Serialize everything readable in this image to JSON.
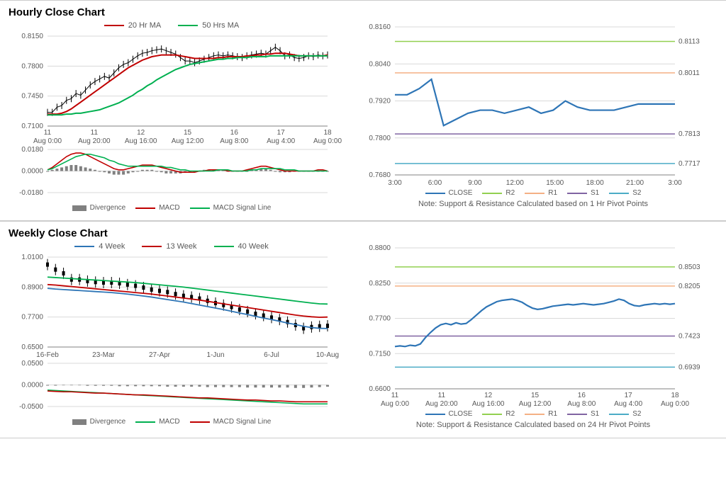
{
  "hourly": {
    "title": "Hourly Close Chart",
    "top_legend": [
      {
        "label": "20 Hr MA",
        "color": "#c00000"
      },
      {
        "label": "50 Hrs MA",
        "color": "#00b050"
      }
    ],
    "main_chart": {
      "type": "line",
      "ylim": [
        0.71,
        0.815
      ],
      "yticks": [
        0.71,
        0.745,
        0.78,
        0.815
      ],
      "xlabels": [
        "11 Aug 0:00",
        "11 Aug 20:00",
        "12 Aug 16:00",
        "15 Aug 12:00",
        "16 Aug 8:00",
        "17 Aug 4:00",
        "18 Aug 0:00"
      ],
      "price_color": "#000000",
      "price": [
        0.726,
        0.726,
        0.732,
        0.734,
        0.74,
        0.742,
        0.748,
        0.746,
        0.752,
        0.758,
        0.762,
        0.765,
        0.768,
        0.766,
        0.772,
        0.778,
        0.782,
        0.784,
        0.788,
        0.792,
        0.795,
        0.796,
        0.798,
        0.799,
        0.8,
        0.798,
        0.796,
        0.794,
        0.79,
        0.786,
        0.786,
        0.784,
        0.786,
        0.788,
        0.79,
        0.792,
        0.793,
        0.792,
        0.793,
        0.792,
        0.791,
        0.79,
        0.792,
        0.793,
        0.794,
        0.795,
        0.794,
        0.798,
        0.802,
        0.798,
        0.792,
        0.793,
        0.79,
        0.789,
        0.79,
        0.792,
        0.791,
        0.793,
        0.792,
        0.793
      ],
      "ma20_color": "#c00000",
      "ma20": [
        0.724,
        0.724,
        0.724,
        0.725,
        0.727,
        0.73,
        0.734,
        0.738,
        0.742,
        0.746,
        0.75,
        0.754,
        0.758,
        0.762,
        0.766,
        0.77,
        0.774,
        0.778,
        0.781,
        0.784,
        0.787,
        0.789,
        0.791,
        0.792,
        0.793,
        0.793,
        0.793,
        0.793,
        0.792,
        0.791,
        0.79,
        0.789,
        0.789,
        0.789,
        0.789,
        0.789,
        0.79,
        0.79,
        0.791,
        0.791,
        0.791,
        0.791,
        0.792,
        0.792,
        0.793,
        0.793,
        0.794,
        0.794,
        0.795,
        0.795,
        0.795,
        0.794,
        0.793,
        0.792,
        0.792,
        0.792,
        0.792,
        0.792,
        0.792,
        0.793
      ],
      "ma50_color": "#00b050",
      "ma50": [
        0.723,
        0.723,
        0.723,
        0.723,
        0.724,
        0.724,
        0.725,
        0.725,
        0.726,
        0.727,
        0.728,
        0.729,
        0.731,
        0.733,
        0.735,
        0.737,
        0.74,
        0.743,
        0.746,
        0.75,
        0.753,
        0.757,
        0.76,
        0.764,
        0.767,
        0.77,
        0.773,
        0.776,
        0.778,
        0.78,
        0.782,
        0.783,
        0.784,
        0.785,
        0.786,
        0.787,
        0.788,
        0.788,
        0.789,
        0.789,
        0.79,
        0.79,
        0.79,
        0.791,
        0.791,
        0.791,
        0.791,
        0.792,
        0.792,
        0.792,
        0.792,
        0.792,
        0.792,
        0.792,
        0.792,
        0.792,
        0.792,
        0.792,
        0.792,
        0.792
      ],
      "grid_color": "#d9d9d9",
      "background_color": "#ffffff"
    },
    "macd_chart": {
      "type": "line",
      "ylim": [
        -0.018,
        0.018
      ],
      "yticks": [
        -0.018,
        0.0,
        0.018
      ],
      "div_color": "#808080",
      "divergence": [
        0,
        0.001,
        0.002,
        0.003,
        0.004,
        0.005,
        0.005,
        0.004,
        0.003,
        0.002,
        0.001,
        0,
        -0.001,
        -0.002,
        -0.003,
        -0.003,
        -0.003,
        -0.002,
        -0.001,
        0,
        0.001,
        0.001,
        0.001,
        0,
        -0.001,
        -0.002,
        -0.002,
        -0.002,
        -0.002,
        -0.001,
        -0.001,
        0,
        0,
        0.001,
        0.001,
        0.001,
        0.001,
        0.001,
        0,
        0,
        0,
        0,
        0,
        0.001,
        0.001,
        0.002,
        0.002,
        0.001,
        0,
        -0.001,
        -0.001,
        -0.001,
        0,
        0,
        0,
        0,
        0,
        0,
        0,
        0
      ],
      "macd_color": "#c00000",
      "macd": [
        0.001,
        0.003,
        0.006,
        0.009,
        0.012,
        0.014,
        0.015,
        0.015,
        0.014,
        0.012,
        0.01,
        0.008,
        0.006,
        0.004,
        0.002,
        0.001,
        0.001,
        0.002,
        0.003,
        0.004,
        0.005,
        0.005,
        0.005,
        0.004,
        0.003,
        0.002,
        0.001,
        0,
        -0.001,
        -0.001,
        -0.001,
        -0.001,
        0,
        0,
        0.001,
        0.001,
        0.001,
        0.001,
        0,
        0,
        0,
        0,
        0.001,
        0.002,
        0.003,
        0.004,
        0.004,
        0.003,
        0.002,
        0.001,
        0,
        0,
        0,
        0,
        0,
        0,
        0,
        0.001,
        0.001,
        0
      ],
      "signal_color": "#00b050",
      "signal": [
        0.001,
        0.002,
        0.004,
        0.006,
        0.008,
        0.01,
        0.012,
        0.013,
        0.014,
        0.014,
        0.013,
        0.012,
        0.011,
        0.009,
        0.008,
        0.006,
        0.005,
        0.004,
        0.004,
        0.004,
        0.004,
        0.004,
        0.004,
        0.004,
        0.004,
        0.003,
        0.003,
        0.002,
        0.001,
        0.001,
        0,
        0,
        0,
        0,
        0,
        0,
        0.001,
        0.001,
        0.001,
        0,
        0,
        0,
        0,
        0.001,
        0.001,
        0.002,
        0.002,
        0.002,
        0.002,
        0.002,
        0.001,
        0.001,
        0.001,
        0,
        0,
        0,
        0,
        0,
        0,
        0
      ],
      "legend": [
        {
          "label": "Divergence",
          "color": "#808080",
          "type": "bar"
        },
        {
          "label": "MACD",
          "color": "#c00000",
          "type": "line"
        },
        {
          "label": "MACD Signal Line",
          "color": "#00b050",
          "type": "line"
        }
      ]
    },
    "sr_chart": {
      "type": "line",
      "ylim": [
        0.768,
        0.816
      ],
      "yticks": [
        0.768,
        0.78,
        0.792,
        0.804,
        0.816
      ],
      "xlabels": [
        "3:00",
        "6:00",
        "9:00",
        "12:00",
        "15:00",
        "18:00",
        "21:00",
        "3:00"
      ],
      "close_color": "#2e75b6",
      "close": [
        0.794,
        0.794,
        0.796,
        0.799,
        0.784,
        0.786,
        0.788,
        0.789,
        0.789,
        0.788,
        0.789,
        0.79,
        0.788,
        0.789,
        0.792,
        0.79,
        0.789,
        0.789,
        0.789,
        0.79,
        0.791,
        0.791,
        0.791,
        0.791
      ],
      "levels": [
        {
          "name": "R2",
          "value": 0.8113,
          "label": "0.8113",
          "color": "#92d050"
        },
        {
          "name": "R1",
          "value": 0.8011,
          "label": "0.8011",
          "color": "#f4b084"
        },
        {
          "name": "S1",
          "value": 0.7813,
          "label": "0.7813",
          "color": "#8064a2"
        },
        {
          "name": "S2",
          "value": 0.7717,
          "label": "0.7717",
          "color": "#4bacc6"
        }
      ],
      "legend": [
        {
          "label": "CLOSE",
          "color": "#2e75b6"
        },
        {
          "label": "R2",
          "color": "#92d050"
        },
        {
          "label": "R1",
          "color": "#f4b084"
        },
        {
          "label": "S1",
          "color": "#8064a2"
        },
        {
          "label": "S2",
          "color": "#4bacc6"
        }
      ],
      "note": "Note: Support & Resistance Calculated based on 1 Hr Pivot Points"
    }
  },
  "weekly": {
    "title": "Weekly Close Chart",
    "top_legend": [
      {
        "label": "4 Week",
        "color": "#2e75b6"
      },
      {
        "label": "13 Week",
        "color": "#c00000"
      },
      {
        "label": "40 Week",
        "color": "#00b050"
      }
    ],
    "main_chart": {
      "type": "line",
      "ylim": [
        0.65,
        1.01
      ],
      "yticks": [
        0.65,
        0.77,
        0.89,
        1.01
      ],
      "xlabels": [
        "16-Feb",
        "23-Mar",
        "27-Apr",
        "1-Jun",
        "6-Jul",
        "10-Aug"
      ],
      "candle_color": "#000000",
      "candles": [
        0.98,
        0.96,
        0.945,
        0.92,
        0.92,
        0.914,
        0.91,
        0.908,
        0.908,
        0.905,
        0.9,
        0.895,
        0.888,
        0.88,
        0.875,
        0.87,
        0.862,
        0.855,
        0.85,
        0.844,
        0.835,
        0.826,
        0.818,
        0.81,
        0.8,
        0.792,
        0.783,
        0.776,
        0.768,
        0.76,
        0.75,
        0.738,
        0.725,
        0.73,
        0.733,
        0.735
      ],
      "w4_color": "#2e75b6",
      "w4": [
        0.885,
        0.882,
        0.88,
        0.878,
        0.876,
        0.874,
        0.872,
        0.87,
        0.868,
        0.865,
        0.862,
        0.858,
        0.854,
        0.85,
        0.845,
        0.84,
        0.835,
        0.83,
        0.824,
        0.818,
        0.812,
        0.806,
        0.8,
        0.793,
        0.786,
        0.78,
        0.773,
        0.766,
        0.76,
        0.753,
        0.746,
        0.74,
        0.733,
        0.728,
        0.725,
        0.724
      ],
      "w13_color": "#c00000",
      "w13": [
        0.9,
        0.898,
        0.895,
        0.892,
        0.889,
        0.886,
        0.883,
        0.88,
        0.877,
        0.874,
        0.871,
        0.868,
        0.865,
        0.862,
        0.858,
        0.854,
        0.85,
        0.846,
        0.842,
        0.838,
        0.833,
        0.828,
        0.823,
        0.818,
        0.813,
        0.808,
        0.803,
        0.798,
        0.793,
        0.788,
        0.783,
        0.778,
        0.774,
        0.771,
        0.769,
        0.77
      ],
      "w40_color": "#00b050",
      "w40": [
        0.93,
        0.928,
        0.926,
        0.924,
        0.922,
        0.92,
        0.918,
        0.916,
        0.914,
        0.912,
        0.91,
        0.908,
        0.905,
        0.902,
        0.899,
        0.896,
        0.893,
        0.89,
        0.886,
        0.882,
        0.878,
        0.874,
        0.87,
        0.866,
        0.862,
        0.858,
        0.854,
        0.85,
        0.846,
        0.842,
        0.838,
        0.834,
        0.83,
        0.826,
        0.823,
        0.822
      ],
      "grid_color": "#d9d9d9",
      "background_color": "#ffffff"
    },
    "macd_chart": {
      "type": "line",
      "ylim": [
        -0.05,
        0.05
      ],
      "yticks": [
        -0.05,
        0.0,
        0.05
      ],
      "div_color": "#808080",
      "divergence": [
        0,
        0,
        -0.001,
        -0.001,
        -0.001,
        -0.002,
        -0.002,
        -0.002,
        -0.002,
        -0.003,
        -0.003,
        -0.003,
        -0.003,
        -0.003,
        -0.003,
        -0.004,
        -0.004,
        -0.004,
        -0.004,
        -0.004,
        -0.005,
        -0.005,
        -0.005,
        -0.005,
        -0.005,
        -0.006,
        -0.006,
        -0.006,
        -0.006,
        -0.006,
        -0.006,
        -0.007,
        -0.007,
        -0.006,
        -0.005,
        -0.004
      ],
      "macd_color": "#00b050",
      "macd": [
        -0.012,
        -0.013,
        -0.014,
        -0.015,
        -0.016,
        -0.017,
        -0.018,
        -0.019,
        -0.02,
        -0.021,
        -0.022,
        -0.023,
        -0.024,
        -0.025,
        -0.026,
        -0.027,
        -0.028,
        -0.029,
        -0.03,
        -0.031,
        -0.032,
        -0.033,
        -0.034,
        -0.035,
        -0.036,
        -0.037,
        -0.038,
        -0.039,
        -0.04,
        -0.041,
        -0.042,
        -0.043,
        -0.044,
        -0.044,
        -0.044,
        -0.044
      ],
      "signal_color": "#c00000",
      "signal": [
        -0.014,
        -0.015,
        -0.016,
        -0.016,
        -0.017,
        -0.018,
        -0.019,
        -0.019,
        -0.02,
        -0.021,
        -0.022,
        -0.023,
        -0.023,
        -0.024,
        -0.025,
        -0.026,
        -0.027,
        -0.028,
        -0.029,
        -0.03,
        -0.03,
        -0.031,
        -0.032,
        -0.033,
        -0.034,
        -0.035,
        -0.035,
        -0.036,
        -0.037,
        -0.037,
        -0.038,
        -0.039,
        -0.039,
        -0.039,
        -0.039,
        -0.039
      ],
      "legend": [
        {
          "label": "Divergence",
          "color": "#808080",
          "type": "bar"
        },
        {
          "label": "MACD",
          "color": "#00b050",
          "type": "line"
        },
        {
          "label": "MACD Signal Line",
          "color": "#c00000",
          "type": "line"
        }
      ]
    },
    "sr_chart": {
      "type": "line",
      "ylim": [
        0.66,
        0.88
      ],
      "yticks": [
        0.66,
        0.715,
        0.77,
        0.825,
        0.88
      ],
      "xlabels": [
        "11 Aug 0:00",
        "11 Aug 20:00",
        "12 Aug 16:00",
        "15 Aug 12:00",
        "16 Aug 8:00",
        "17 Aug 4:00",
        "18 Aug 0:00"
      ],
      "close_color": "#2e75b6",
      "close": [
        0.726,
        0.727,
        0.726,
        0.728,
        0.727,
        0.73,
        0.74,
        0.748,
        0.755,
        0.76,
        0.762,
        0.76,
        0.763,
        0.761,
        0.762,
        0.768,
        0.775,
        0.782,
        0.788,
        0.792,
        0.796,
        0.798,
        0.799,
        0.8,
        0.798,
        0.795,
        0.79,
        0.786,
        0.784,
        0.785,
        0.787,
        0.789,
        0.79,
        0.791,
        0.792,
        0.791,
        0.792,
        0.793,
        0.792,
        0.791,
        0.792,
        0.793,
        0.795,
        0.797,
        0.8,
        0.798,
        0.793,
        0.79,
        0.789,
        0.791,
        0.792,
        0.793,
        0.792,
        0.793,
        0.792,
        0.793
      ],
      "levels": [
        {
          "name": "R2",
          "value": 0.8503,
          "label": "0.8503",
          "color": "#92d050"
        },
        {
          "name": "R1",
          "value": 0.8205,
          "label": "0.8205",
          "color": "#f4b084"
        },
        {
          "name": "S1",
          "value": 0.7423,
          "label": "0.7423",
          "color": "#8064a2"
        },
        {
          "name": "S2",
          "value": 0.6939,
          "label": "0.6939",
          "color": "#4bacc6"
        }
      ],
      "legend": [
        {
          "label": "CLOSE",
          "color": "#2e75b6"
        },
        {
          "label": "R2",
          "color": "#92d050"
        },
        {
          "label": "R1",
          "color": "#f4b084"
        },
        {
          "label": "S1",
          "color": "#8064a2"
        },
        {
          "label": "S2",
          "color": "#4bacc6"
        }
      ],
      "note": "Note: Support & Resistance Calculated based on 24 Hr Pivot Points"
    }
  }
}
